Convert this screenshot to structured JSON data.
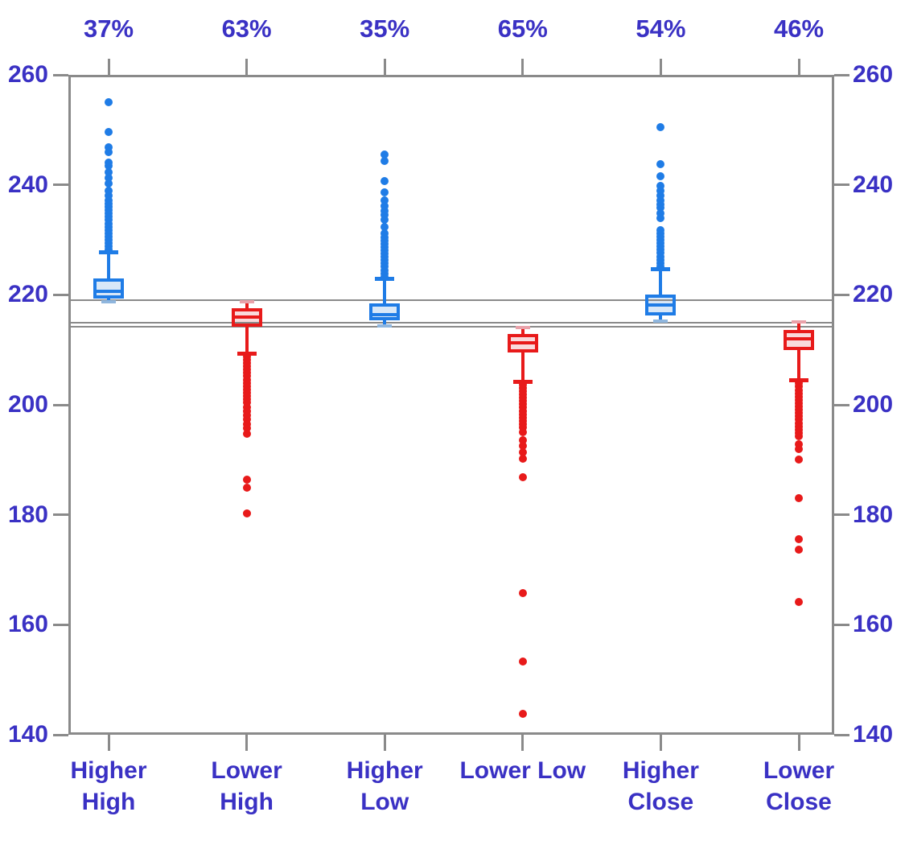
{
  "chart_data": {
    "type": "boxplot",
    "title": "",
    "y_axis": {
      "min": 140,
      "max": 260,
      "step": 20,
      "ticks": [
        260,
        240,
        220,
        200,
        180,
        160,
        140
      ],
      "sides": "left-and-right"
    },
    "reference_lines": {
      "values": [
        219.0,
        214.95,
        214.2
      ],
      "color": "#8a8a8a"
    },
    "colors": {
      "up": {
        "stroke": "#1F7CE6",
        "fill": "#D9E8F8",
        "cap": "#8FB6DE"
      },
      "down": {
        "stroke": "#E81A1A",
        "fill": "#F9DADC",
        "cap": "#E9A2AA"
      },
      "axis": "#8a8a8a",
      "label": "#3A31C4"
    },
    "grid": false,
    "legend": "none",
    "series": [
      {
        "name": "Higher High",
        "label_lines": [
          "Higher",
          "High"
        ],
        "percent": "37%",
        "direction": "up",
        "whisker_low": 218.7,
        "q1": 219.3,
        "median": 220.7,
        "q3": 223.0,
        "whisker_high": 227.7,
        "outliers": [
          228.2,
          228.8,
          229.4,
          230,
          230.6,
          231.2,
          231.8,
          232.4,
          233,
          233.6,
          234.2,
          234.8,
          235.4,
          236,
          236.6,
          237.2,
          238.1,
          239,
          240.2,
          241.2,
          242.3,
          243.4,
          244.1,
          246,
          246.9,
          249.6,
          255
        ]
      },
      {
        "name": "Lower High",
        "label_lines": [
          "Lower",
          "High"
        ],
        "percent": "63%",
        "direction": "down",
        "whisker_low": 209.3,
        "q1": 214.2,
        "median": 215.9,
        "q3": 217.6,
        "whisker_high": 218.7,
        "outliers": [
          208.8,
          208.2,
          207.6,
          207,
          206.4,
          205.8,
          205.2,
          204.6,
          204,
          203.4,
          202.8,
          202.2,
          201.6,
          201,
          200.4,
          199.5,
          198.8,
          198.1,
          197.3,
          196.5,
          195.7,
          194.8,
          186.4,
          184.9,
          180.3
        ]
      },
      {
        "name": "Higher Low",
        "label_lines": [
          "Higher",
          "Low"
        ],
        "percent": "35%",
        "direction": "up",
        "whisker_low": 214.4,
        "q1": 215.3,
        "median": 216.4,
        "q3": 218.5,
        "whisker_high": 222.9,
        "outliers": [
          223.3,
          223.9,
          224.5,
          225.1,
          225.7,
          226.3,
          226.9,
          227.5,
          228.1,
          228.7,
          229.3,
          229.9,
          230.5,
          231.1,
          232.4,
          233.7,
          234.5,
          235.2,
          236.1,
          237.1,
          238.6,
          240.7,
          244.3,
          245.5
        ]
      },
      {
        "name": "Lower Low",
        "label_lines": [
          "Lower Low"
        ],
        "percent": "65%",
        "direction": "down",
        "whisker_low": 204.2,
        "q1": 209.5,
        "median": 211.2,
        "q3": 212.9,
        "whisker_high": 214.1,
        "outliers": [
          203.7,
          203.1,
          202.5,
          201.9,
          201.3,
          200.7,
          200.1,
          199.5,
          198.9,
          198.3,
          197.7,
          197.1,
          196.5,
          195.9,
          195,
          193.6,
          192.5,
          191.3,
          190.2,
          186.8,
          165.8,
          153.3,
          143.8
        ]
      },
      {
        "name": "Higher Close",
        "label_lines": [
          "Higher",
          "Close"
        ],
        "percent": "54%",
        "direction": "up",
        "whisker_low": 215.2,
        "q1": 216.3,
        "median": 218.1,
        "q3": 220.1,
        "whisker_high": 224.7,
        "outliers": [
          225.2,
          225.8,
          226.4,
          227,
          227.6,
          228.2,
          228.8,
          229.4,
          230,
          230.6,
          231.2,
          231.8,
          233.9,
          234.8,
          235.8,
          236.4,
          237.2,
          238.1,
          239,
          239.8,
          241.5,
          243.7,
          250.5
        ]
      },
      {
        "name": "Lower Close",
        "label_lines": [
          "Lower",
          "Close"
        ],
        "percent": "46%",
        "direction": "down",
        "whisker_low": 204.4,
        "q1": 210.0,
        "median": 212.0,
        "q3": 213.6,
        "whisker_high": 215.1,
        "outliers": [
          203.9,
          203.3,
          202.7,
          202.1,
          201.5,
          200.9,
          200.3,
          199.7,
          199.1,
          198.5,
          197.9,
          197.3,
          196.7,
          196.1,
          195.5,
          194.9,
          194.3,
          192.9,
          191.9,
          190,
          183,
          175.5,
          173.6,
          164.2
        ]
      }
    ]
  }
}
